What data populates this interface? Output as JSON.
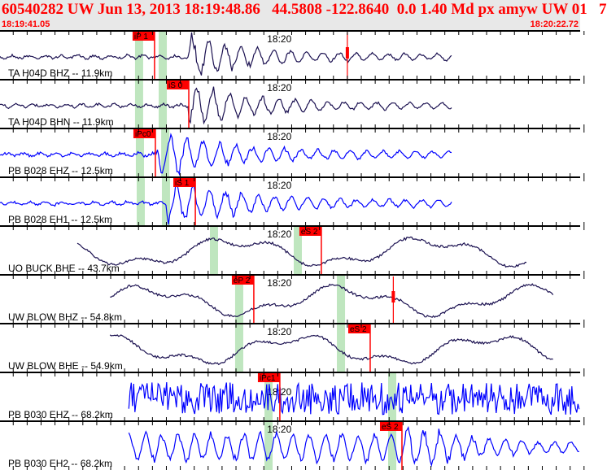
{
  "header": {
    "title": "60540282 UW Jun 13, 2013 18:19:48.86   44.5808 -122.8640  0.0 1.40 Md px amyw UW 01   7",
    "start_time": "18:19:41.05",
    "end_time": "18:20:22.72"
  },
  "minute_label": "18:20",
  "colors": {
    "header_text": "#ff0000",
    "pick": "#ff0000",
    "window": "#bfe6bf",
    "trace_dark": "#1a1050",
    "trace_blue": "#0000ff"
  },
  "panels": [
    {
      "label": "TA H04D BHZ -- 11.9km",
      "color": "dark",
      "picks": [
        {
          "label": "iP 1",
          "time": "18:19:52.15"
        }
      ],
      "windows": [
        "18:19:51.04",
        "18:19:52.74"
      ],
      "marker": "18:20:06.00",
      "trace": [
        "18:19:41.05",
        "18:20:13.50"
      ],
      "onset": "18:19:54.50"
    },
    {
      "label": "TA H04D BHN -- 11.9km",
      "color": "dark",
      "picks": [
        {
          "label": "iS 0",
          "time": "18:19:54.61"
        }
      ],
      "windows": [
        "18:19:51.04",
        "18:19:52.74"
      ],
      "trace": [
        "18:19:41.05",
        "18:20:13.50"
      ],
      "onset": "18:19:54.60"
    },
    {
      "label": "PB B028 EHZ -- 12.5km",
      "color": "blue",
      "picks": [
        {
          "label": "iPc0",
          "time": "18:19:52.21"
        }
      ],
      "windows": [
        "18:19:51.10",
        "18:19:52.92"
      ],
      "trace": [
        "18:19:41.05",
        "18:20:13.50"
      ],
      "onset": "18:19:52.30"
    },
    {
      "label": "PB B028 EH1 -- 12.5km",
      "color": "blue",
      "picks": [
        {
          "label": "iS 1",
          "time": "18:19:55.08"
        }
      ],
      "windows": [
        "18:19:51.16",
        "18:19:52.97"
      ],
      "trace": [
        "18:19:41.05",
        "18:20:13.50"
      ],
      "onset": "18:19:53.00"
    },
    {
      "label": "UO BUCK BHE -- 43.7km",
      "color": "dark",
      "picks": [
        {
          "label": "eS 2",
          "time": "18:20:04.13"
        }
      ],
      "windows": [
        "18:19:56.42",
        "18:20:02.44"
      ],
      "trace": [
        "18:19:46.60",
        "18:20:18.90"
      ],
      "onset": "slow"
    },
    {
      "label": "UW BLOW BHZ -- 54.8km",
      "color": "dark",
      "picks": [
        {
          "label": "eP 2",
          "time": "18:19:59.28"
        }
      ],
      "windows": [
        "18:19:58.23",
        "18:20:05.54"
      ],
      "marker": "18:20:09.30",
      "trace": [
        "18:19:48.95",
        "18:20:20.80"
      ],
      "onset": "slow"
    },
    {
      "label": "UW BLOW BHE -- 54.9km",
      "color": "dark",
      "picks": [
        {
          "label": "eS 2",
          "time": "18:20:07.64"
        }
      ],
      "windows": [
        "18:19:58.23",
        "18:20:05.54"
      ],
      "trace": [
        "18:19:48.95",
        "18:20:20.80"
      ],
      "onset": "slow"
    },
    {
      "label": "PB B030 EHZ -- 68.2km",
      "color": "blue",
      "picks": [
        {
          "label": "iPc1",
          "time": "18:20:01.15"
        }
      ],
      "windows": [
        "18:20:00.34",
        "18:20:09.22"
      ],
      "trace": [
        "18:19:50.30",
        "18:20:22.72"
      ],
      "onset": "noise"
    },
    {
      "label": "PB B030 EH2 -- 68.2km",
      "color": "blue",
      "picks": [
        {
          "label": "eS 2",
          "time": "18:20:09.92"
        }
      ],
      "windows": [
        "18:20:00.34",
        "18:20:09.22"
      ],
      "trace": [
        "18:19:50.30",
        "18:20:22.72"
      ],
      "onset": "18:20:09.92"
    }
  ]
}
